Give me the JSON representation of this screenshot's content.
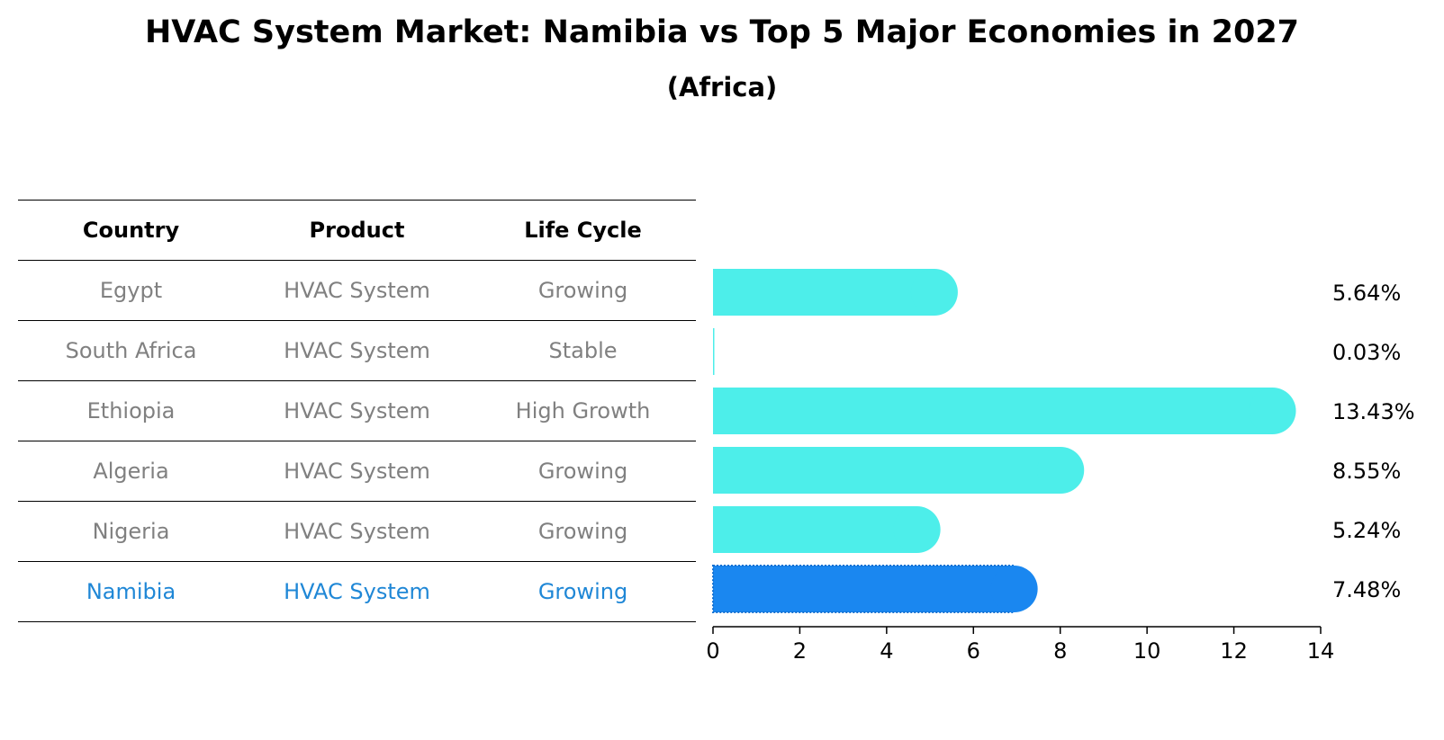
{
  "chart_data": {
    "type": "bar",
    "orientation": "horizontal",
    "title": "HVAC System Market: Namibia vs Top 5 Major Economies in 2027",
    "subtitle": "(Africa)",
    "categories": [
      "Egypt",
      "South Africa",
      "Ethiopia",
      "Algeria",
      "Nigeria",
      "Namibia"
    ],
    "values": [
      5.64,
      0.03,
      13.43,
      8.55,
      5.24,
      7.48
    ],
    "value_labels": [
      "5.64%",
      "0.03%",
      "13.43%",
      "8.55%",
      "5.24%",
      "7.48%"
    ],
    "highlight": "Namibia",
    "xlim": [
      0,
      14
    ],
    "xticks": [
      0,
      2,
      4,
      6,
      8,
      10,
      12,
      14
    ],
    "colors": {
      "bar": "#4deeea",
      "highlight_bar": "#1a87f0",
      "highlight_text": "#1f87d6",
      "muted_text": "#808080"
    }
  },
  "table": {
    "headers": [
      "Country",
      "Product",
      "Life Cycle"
    ],
    "rows": [
      [
        "Egypt",
        "HVAC System",
        "Growing"
      ],
      [
        "South Africa",
        "HVAC System",
        "Stable"
      ],
      [
        "Ethiopia",
        "HVAC System",
        "High Growth"
      ],
      [
        "Algeria",
        "HVAC System",
        "Growing"
      ],
      [
        "Nigeria",
        "HVAC System",
        "Growing"
      ],
      [
        "Namibia",
        "HVAC System",
        "Growing"
      ]
    ]
  }
}
